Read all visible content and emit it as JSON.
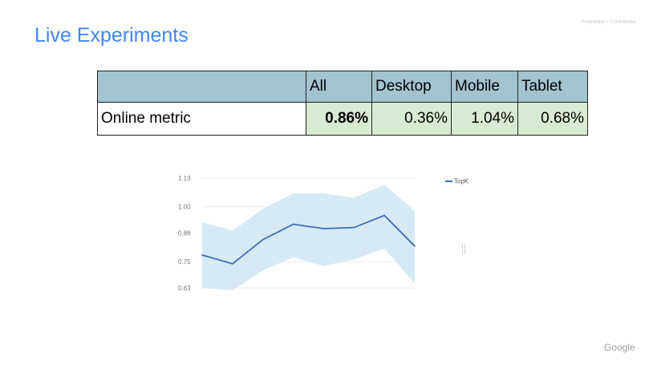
{
  "slide": {
    "title": "Live Experiments",
    "confidential_label": "Proprietary + Confidential",
    "footer_logo": "Google"
  },
  "table": {
    "headers": [
      "",
      "All",
      "Desktop",
      "Mobile",
      "Tablet"
    ],
    "rows": [
      {
        "label": "Online metric",
        "values": [
          "0.86%",
          "0.36%",
          "1.04%",
          "0.68%"
        ]
      }
    ],
    "colors": {
      "header_bg": "#a2c4d0",
      "value_bg": "#d9ead3"
    }
  },
  "chart_data": {
    "type": "line",
    "x": [
      1,
      2,
      3,
      4,
      5,
      6,
      7,
      8
    ],
    "series": [
      {
        "name": "TopK",
        "values": [
          0.78,
          0.74,
          0.85,
          0.92,
          0.9,
          0.905,
          0.96,
          0.82
        ],
        "lower": [
          0.63,
          0.62,
          0.71,
          0.77,
          0.73,
          0.76,
          0.81,
          0.65
        ],
        "upper": [
          0.93,
          0.89,
          0.99,
          1.06,
          1.06,
          1.04,
          1.1,
          0.98
        ],
        "color": "#3d6fb6",
        "band_color": "#d6e9f5"
      }
    ],
    "yticks": [
      "1.13",
      "1.00",
      "0.88",
      "0.75",
      "0.63"
    ],
    "ylim": [
      0.63,
      1.13
    ],
    "grid": true,
    "legend": "top-right"
  }
}
